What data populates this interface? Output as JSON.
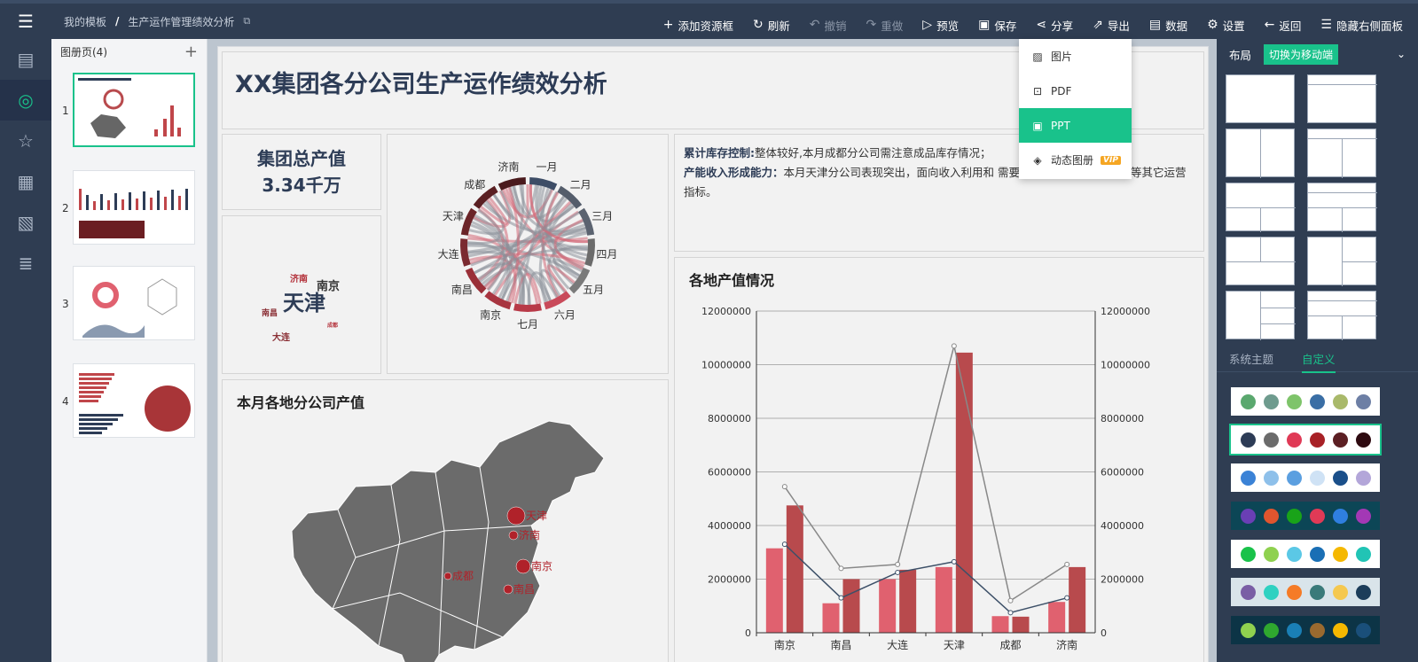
{
  "topbar": {
    "breadcrumb_root": "我的模板",
    "breadcrumb_sep": "/",
    "breadcrumb_current": "生产运作管理绩效分析"
  },
  "toolbar": [
    {
      "id": "add-frame",
      "label": "添加资源框",
      "icon": "plus-icon",
      "glyph": "+",
      "disabled": false
    },
    {
      "id": "refresh",
      "label": "刷新",
      "icon": "refresh-icon",
      "glyph": "↻",
      "disabled": false
    },
    {
      "id": "undo",
      "label": "撤销",
      "icon": "undo-icon",
      "glyph": "↶",
      "disabled": true
    },
    {
      "id": "redo",
      "label": "重做",
      "icon": "redo-icon",
      "glyph": "↷",
      "disabled": true
    },
    {
      "id": "preview",
      "label": "预览",
      "icon": "play-icon",
      "glyph": "▷",
      "disabled": false
    },
    {
      "id": "save",
      "label": "保存",
      "icon": "save-icon",
      "glyph": "▣",
      "disabled": false
    },
    {
      "id": "share",
      "label": "分享",
      "icon": "share-icon",
      "glyph": "⋖",
      "disabled": false
    },
    {
      "id": "export",
      "label": "导出",
      "icon": "export-icon",
      "glyph": "⇗",
      "disabled": false
    },
    {
      "id": "data",
      "label": "数据",
      "icon": "data-icon",
      "glyph": "▤",
      "disabled": false
    },
    {
      "id": "settings",
      "label": "设置",
      "icon": "gear-icon",
      "glyph": "⚙",
      "disabled": false
    },
    {
      "id": "back",
      "label": "返回",
      "icon": "arrow-left-icon",
      "glyph": "←",
      "disabled": false
    },
    {
      "id": "hide-panel",
      "label": "隐藏右侧面板",
      "icon": "collapse-panel-icon",
      "glyph": "☰",
      "disabled": false
    }
  ],
  "export_menu": [
    {
      "label": "图片",
      "icon": "image-icon",
      "glyph": "▨",
      "selected": false,
      "vip": ""
    },
    {
      "label": "PDF",
      "icon": "pdf-icon",
      "glyph": "⊡",
      "selected": false,
      "vip": ""
    },
    {
      "label": "PPT",
      "icon": "ppt-icon",
      "glyph": "▣",
      "selected": true,
      "vip": ""
    },
    {
      "label": "动态图册",
      "icon": "dynamic-album-icon",
      "glyph": "◈",
      "selected": false,
      "vip": "VIP"
    }
  ],
  "rail": [
    {
      "icon": "pages-icon",
      "glyph": "▤",
      "active": false
    },
    {
      "icon": "theme-icon",
      "glyph": "◎",
      "active": true
    },
    {
      "icon": "star-icon",
      "glyph": "☆",
      "active": false
    },
    {
      "icon": "report-icon",
      "glyph": "▦",
      "active": false
    },
    {
      "icon": "report-search-icon",
      "glyph": "▧",
      "active": false
    },
    {
      "icon": "list-doc-icon",
      "glyph": "≣",
      "active": false
    }
  ],
  "pages_panel": {
    "header": "图册页(4)",
    "pages": [
      "1",
      "2",
      "3",
      "4"
    ]
  },
  "dashboard": {
    "title": "XX集团各分公司生产运作绩效分析",
    "kpi_label": "集团总产值",
    "kpi_value": "3.34千万",
    "notes": [
      {
        "head": "累计库存控制:",
        "body": "整体较好,本月成都分公司需注意成品库存情况；"
      },
      {
        "head": "产能收入形成能力：",
        "body": "本月天津分公司表现突出，面向收入利用和                                          需要进一步关注其生产周期等其它运营指标。"
      }
    ],
    "wordcloud": [
      {
        "text": "天津",
        "color": "#2d3c56",
        "size": 24
      },
      {
        "text": "南京",
        "color": "#333333",
        "size": 13
      },
      {
        "text": "济南",
        "color": "#b4333c",
        "size": 10
      },
      {
        "text": "南昌",
        "color": "#8a2f35",
        "size": 9
      },
      {
        "text": "大连",
        "color": "#8a2f35",
        "size": 10
      },
      {
        "text": "成都",
        "color": "#b4333c",
        "size": 6
      }
    ],
    "map_title": "本月各地分公司产值",
    "map_cities": [
      {
        "name": "天津",
        "r": 10
      },
      {
        "name": "济南",
        "r": 5
      },
      {
        "name": "南京",
        "r": 8
      },
      {
        "name": "成都",
        "r": 4
      },
      {
        "name": "南昌",
        "r": 5
      }
    ],
    "chord_labels": [
      "一月",
      "二月",
      "三月",
      "四月",
      "五月",
      "六月",
      "七月",
      "南京",
      "南昌",
      "大连",
      "天津",
      "成都",
      "济南"
    ]
  },
  "chart_data": {
    "type": "bar",
    "title": "各地产值情况",
    "categories": [
      "南京",
      "南昌",
      "大连",
      "天津",
      "成都",
      "济南"
    ],
    "ylim": [
      0,
      12000000
    ],
    "yticks": [
      "0",
      "2000000",
      "4000000",
      "6000000",
      "8000000",
      "10000000",
      "12000000"
    ],
    "series": [
      {
        "kind": "bar",
        "color": "#e0616f",
        "values": [
          3150000,
          1100000,
          2000000,
          2450000,
          620000,
          1150000
        ]
      },
      {
        "kind": "bar",
        "color": "#b84a4d",
        "values": [
          4750000,
          2000000,
          2350000,
          10450000,
          600000,
          2450000
        ]
      },
      {
        "kind": "line",
        "color": "#888888",
        "values": [
          5450000,
          2400000,
          2550000,
          10700000,
          1200000,
          2550000
        ]
      },
      {
        "kind": "line",
        "color": "#3d5068",
        "values": [
          3300000,
          1300000,
          2250000,
          2650000,
          750000,
          1300000
        ]
      }
    ],
    "grid": true
  },
  "right_panel": {
    "layout_label": "布局",
    "switch_label": "切换为移动端",
    "tab_system": "系统主题",
    "tab_custom": "自定义",
    "themes": [
      {
        "bg": "#ffffff",
        "colors": [
          "#5aa86e",
          "#6e9b8e",
          "#7ec46a",
          "#3a6ea5",
          "#a9b96a",
          "#6d7fa5"
        ],
        "selected": false
      },
      {
        "bg": "#ffffff",
        "colors": [
          "#2d3c56",
          "#6b6b6b",
          "#e03a56",
          "#a82126",
          "#5c1f23",
          "#2e0a10"
        ],
        "selected": true
      },
      {
        "bg": "#ffffff",
        "colors": [
          "#3b82d6",
          "#8ec0ea",
          "#5b9fe0",
          "#cfe2f5",
          "#1a4f8a",
          "#b3a6d9"
        ],
        "selected": false
      },
      {
        "bg": "#0c4656",
        "colors": [
          "#6a3fb5",
          "#e0552e",
          "#19a319",
          "#e03a56",
          "#2f7fe0",
          "#a338b5"
        ],
        "selected": false
      },
      {
        "bg": "#ffffff",
        "colors": [
          "#19c24a",
          "#8fd14f",
          "#5bc8e6",
          "#1a6fb5",
          "#f5b800",
          "#21c4b5"
        ],
        "selected": false
      },
      {
        "bg": "#d9e4ea",
        "colors": [
          "#7a5ea5",
          "#2fd1c1",
          "#f57b26",
          "#3a7a7a",
          "#f5c84f",
          "#1c3d5a"
        ],
        "selected": false
      },
      {
        "bg": "#0c3446",
        "colors": [
          "#8fd14f",
          "#2fa82f",
          "#1a7fb5",
          "#9a6a2f",
          "#f5b800",
          "#1a4f7a"
        ],
        "selected": false
      }
    ]
  }
}
